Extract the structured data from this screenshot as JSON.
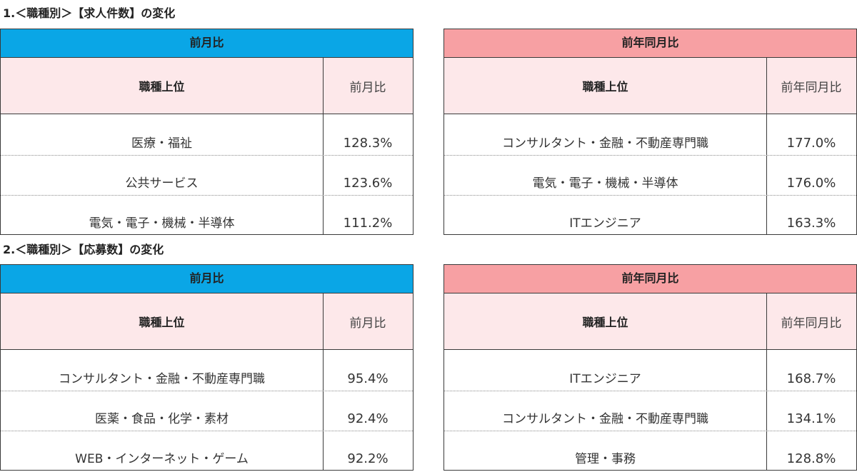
{
  "sections": [
    {
      "title": "1.＜職種別＞【求人件数】の変化",
      "mom": {
        "header": "前月比",
        "col1": "職種上位",
        "col2": "前月比",
        "rows": [
          {
            "name": "医療・福祉",
            "value": "128.3%"
          },
          {
            "name": "公共サービス",
            "value": "123.6%"
          },
          {
            "name": "電気・電子・機械・半導体",
            "value": "111.2%"
          }
        ]
      },
      "yoy": {
        "header": "前年同月比",
        "col1": "職種上位",
        "col2": "前年同月比",
        "rows": [
          {
            "name": "コンサルタント・金融・不動産専門職",
            "value": "177.0%"
          },
          {
            "name": "電気・電子・機械・半導体",
            "value": "176.0%"
          },
          {
            "name": "ITエンジニア",
            "value": "163.3%"
          }
        ]
      }
    },
    {
      "title": "2.＜職種別＞【応募数】の変化",
      "mom": {
        "header": "前月比",
        "col1": "職種上位",
        "col2": "前月比",
        "rows": [
          {
            "name": "コンサルタント・金融・不動産専門職",
            "value": "95.4%"
          },
          {
            "name": "医薬・食品・化学・素材",
            "value": "92.4%"
          },
          {
            "name": "WEB・インターネット・ゲーム",
            "value": "92.2%"
          }
        ]
      },
      "yoy": {
        "header": "前年同月比",
        "col1": "職種上位",
        "col2": "前年同月比",
        "rows": [
          {
            "name": "ITエンジニア",
            "value": "168.7%"
          },
          {
            "name": "コンサルタント・金融・不動産専門職",
            "value": "134.1%"
          },
          {
            "name": "管理・事務",
            "value": "128.8%"
          }
        ]
      }
    }
  ],
  "colors": {
    "mom_header": "#0aa6e6",
    "yoy_header": "#f7a0a3",
    "column_header_bg": "#fde8ea"
  }
}
